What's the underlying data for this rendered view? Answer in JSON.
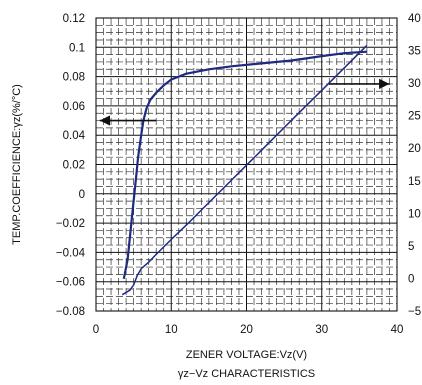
{
  "chart_data": {
    "type": "line",
    "xlabel": "ZENER VOLTAGE:Vz(V)",
    "subtitle": "γz−Vz CHARACTERISTICS",
    "ylabel_left": "TEMP.COEFFICIENCE:γz(%/°C)",
    "ylabel_right": "",
    "xlim": [
      0,
      40
    ],
    "ylim_left": [
      -0.08,
      0.12
    ],
    "ylim_right": [
      -5,
      40
    ],
    "x_ticks": [
      0,
      10,
      20,
      30,
      40
    ],
    "x_tick_labels": [
      "0",
      "10",
      "20",
      "30",
      "40"
    ],
    "y_left_ticks": [
      -0.08,
      -0.06,
      -0.04,
      -0.02,
      0,
      0.02,
      0.04,
      0.06,
      0.08,
      0.1,
      0.12
    ],
    "y_left_tick_labels": [
      "−0.08",
      "−0.06",
      "−0.04",
      "−0.02",
      "0",
      "0.02",
      "0.04",
      "0.06",
      "0.08",
      "0.1",
      "0.12"
    ],
    "y_right_ticks": [
      -5,
      0,
      5,
      10,
      15,
      20,
      25,
      30,
      35,
      40
    ],
    "y_right_tick_labels": [
      "−5",
      "0",
      "5",
      "10",
      "15",
      "20",
      "25",
      "30",
      "35",
      "40"
    ],
    "grid": true,
    "line_color": "#1f2a80",
    "series": [
      {
        "axis": "left",
        "x": [
          3.7,
          4.2,
          4.6,
          5.0,
          5.3,
          5.6,
          6.0,
          6.3,
          6.7,
          7.2,
          8.0,
          9.0,
          10.0,
          12.0,
          15.0,
          18.0,
          22.0,
          26.0,
          30.0,
          33.0,
          36.0
        ],
        "y": [
          -0.058,
          -0.045,
          -0.025,
          -0.005,
          0.01,
          0.025,
          0.04,
          0.05,
          0.058,
          0.064,
          0.069,
          0.074,
          0.078,
          0.082,
          0.085,
          0.087,
          0.089,
          0.091,
          0.094,
          0.096,
          0.097
        ]
      },
      {
        "axis": "right",
        "x": [
          3.5,
          4.5,
          5.0,
          5.5,
          6.0,
          7.0,
          8.0,
          10.0,
          12.0,
          14.0,
          16.0,
          18.0,
          20.0,
          22.0,
          24.0,
          26.0,
          28.0,
          30.0,
          32.0,
          34.0,
          36.0
        ],
        "y": [
          -2.5,
          -1.8,
          -1.0,
          0.5,
          1.5,
          2.5,
          3.7,
          6.0,
          8.2,
          10.5,
          12.8,
          15.1,
          17.4,
          19.7,
          22.0,
          24.3,
          26.6,
          28.9,
          31.2,
          33.5,
          35.8
        ]
      }
    ],
    "annotations": [
      {
        "type": "arrow",
        "direction": "left",
        "x": [
          8,
          0.5
        ],
        "y_left": 0.05,
        "meaning": "left axis"
      },
      {
        "type": "arrow",
        "direction": "right",
        "x": [
          31,
          39
        ],
        "y_left": 0.075,
        "meaning": "right axis"
      }
    ]
  }
}
